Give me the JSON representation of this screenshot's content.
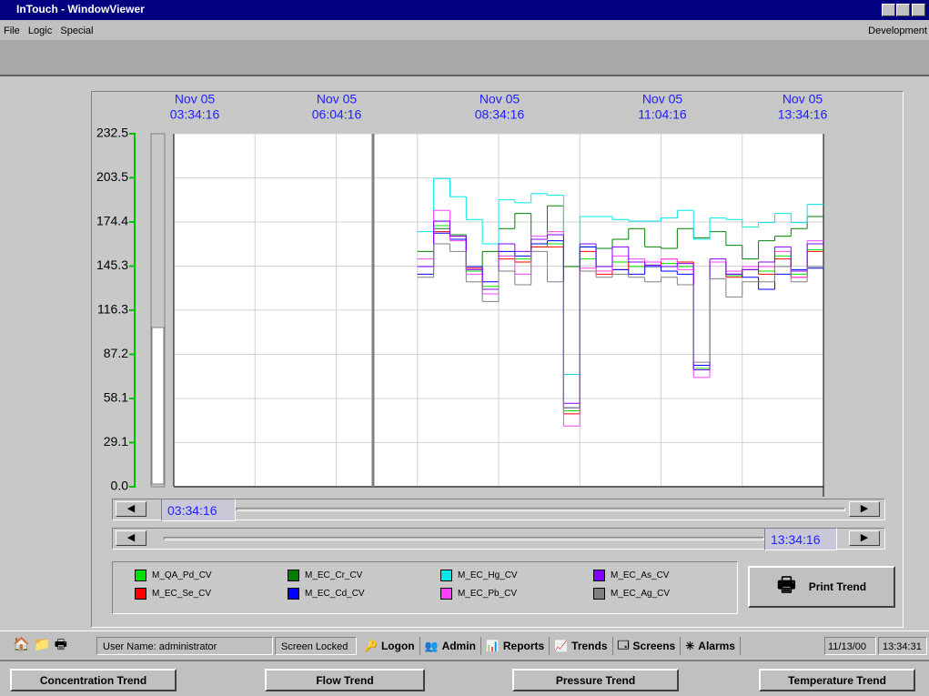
{
  "window": {
    "title": "InTouch - WindowViewer",
    "menu": [
      "File",
      "Logic",
      "Special"
    ],
    "mode": "Development"
  },
  "trend": {
    "x_labels": [
      {
        "date": "Nov 05",
        "time": "03:34:16"
      },
      {
        "date": "Nov 05",
        "time": "06:04:16"
      },
      {
        "date": "Nov 05",
        "time": "08:34:16"
      },
      {
        "date": "Nov 05",
        "time": "11:04:16"
      },
      {
        "date": "Nov 05",
        "time": "13:34:16"
      }
    ],
    "ylim": [
      0,
      232.5
    ],
    "yticks": [
      {
        "value": 0,
        "label": "0.0"
      },
      29.1,
      58.1,
      87.2,
      116.3,
      145.3,
      174.4,
      203.5,
      232.5
    ],
    "start_time": "03:34:16",
    "end_time": "13:34:16",
    "series": [
      {
        "name": "M_QA_Pd_CV",
        "color": "#00e000",
        "values": [
          null,
          null,
          null,
          null,
          null,
          null,
          null,
          null,
          null,
          null,
          null,
          null,
          null,
          null,
          null,
          145,
          172,
          163,
          142,
          132,
          152,
          150,
          158,
          160,
          50,
          150,
          142,
          148,
          145,
          146,
          147,
          145,
          78,
          148,
          139,
          143,
          142,
          152,
          140,
          156
        ]
      },
      {
        "name": "M_EC_Se_CV",
        "color": "#ff0000",
        "values": [
          null,
          null,
          null,
          null,
          null,
          null,
          null,
          null,
          null,
          null,
          null,
          null,
          null,
          null,
          null,
          145,
          168,
          165,
          144,
          130,
          150,
          148,
          158,
          158,
          48,
          155,
          140,
          143,
          148,
          145,
          150,
          148,
          80,
          148,
          138,
          143,
          140,
          150,
          138,
          155
        ]
      },
      {
        "name": "M_EC_Cr_CV",
        "color": "#008000",
        "values": [
          null,
          null,
          null,
          null,
          null,
          null,
          null,
          null,
          null,
          null,
          null,
          null,
          null,
          null,
          null,
          155,
          170,
          166,
          145,
          155,
          170,
          180,
          163,
          185,
          145,
          158,
          157,
          163,
          170,
          158,
          157,
          170,
          164,
          168,
          159,
          150,
          162,
          165,
          170,
          178
        ]
      },
      {
        "name": "M_EC_Cd_CV",
        "color": "#0000ff",
        "values": [
          null,
          null,
          null,
          null,
          null,
          null,
          null,
          null,
          null,
          null,
          null,
          null,
          null,
          null,
          null,
          140,
          167,
          163,
          145,
          135,
          155,
          152,
          160,
          162,
          52,
          158,
          145,
          143,
          140,
          145,
          142,
          140,
          80,
          148,
          140,
          138,
          130,
          140,
          143,
          144
        ]
      },
      {
        "name": "M_EC_Hg_CV",
        "color": "#00e8e8",
        "values": [
          null,
          null,
          null,
          null,
          null,
          null,
          null,
          null,
          null,
          null,
          null,
          null,
          null,
          null,
          null,
          168,
          203,
          191,
          176,
          160,
          189,
          187,
          193,
          192,
          74,
          178,
          178,
          176,
          175,
          175,
          177,
          182,
          163,
          177,
          176,
          171,
          174,
          180,
          174,
          186
        ]
      },
      {
        "name": "M_EC_Pb_CV",
        "color": "#ff40ff",
        "values": [
          null,
          null,
          null,
          null,
          null,
          null,
          null,
          null,
          null,
          null,
          null,
          null,
          null,
          null,
          null,
          150,
          182,
          162,
          140,
          127,
          152,
          140,
          165,
          168,
          40,
          144,
          142,
          152,
          150,
          148,
          150,
          143,
          72,
          148,
          142,
          145,
          145,
          155,
          138,
          162
        ]
      },
      {
        "name": "M_EC_As_CV",
        "color": "#8000ff",
        "values": [
          null,
          null,
          null,
          null,
          null,
          null,
          null,
          null,
          null,
          null,
          null,
          null,
          null,
          null,
          null,
          145,
          175,
          165,
          143,
          130,
          160,
          155,
          163,
          166,
          55,
          160,
          145,
          158,
          148,
          146,
          145,
          147,
          77,
          150,
          140,
          143,
          148,
          158,
          142,
          160
        ]
      },
      {
        "name": "M_EC_Ag_CV",
        "color": "#808080",
        "values": [
          null,
          null,
          null,
          null,
          null,
          null,
          null,
          null,
          null,
          null,
          null,
          null,
          null,
          null,
          null,
          138,
          160,
          155,
          135,
          122,
          142,
          133,
          155,
          135,
          52,
          142,
          138,
          140,
          138,
          135,
          138,
          133,
          82,
          137,
          125,
          135,
          135,
          145,
          135,
          145
        ]
      }
    ]
  },
  "print_button": "Print Trend",
  "status": {
    "user": "User Name:  administrator",
    "lock": "Screen Locked",
    "buttons": [
      "Logon",
      "Admin",
      "Reports",
      "Trends",
      "Screens",
      "Alarms"
    ],
    "date": "11/13/00",
    "time": "13:34:31"
  },
  "nav": [
    "Concentration Trend",
    "Flow Trend",
    "Pressure Trend",
    "Temperature Trend"
  ]
}
